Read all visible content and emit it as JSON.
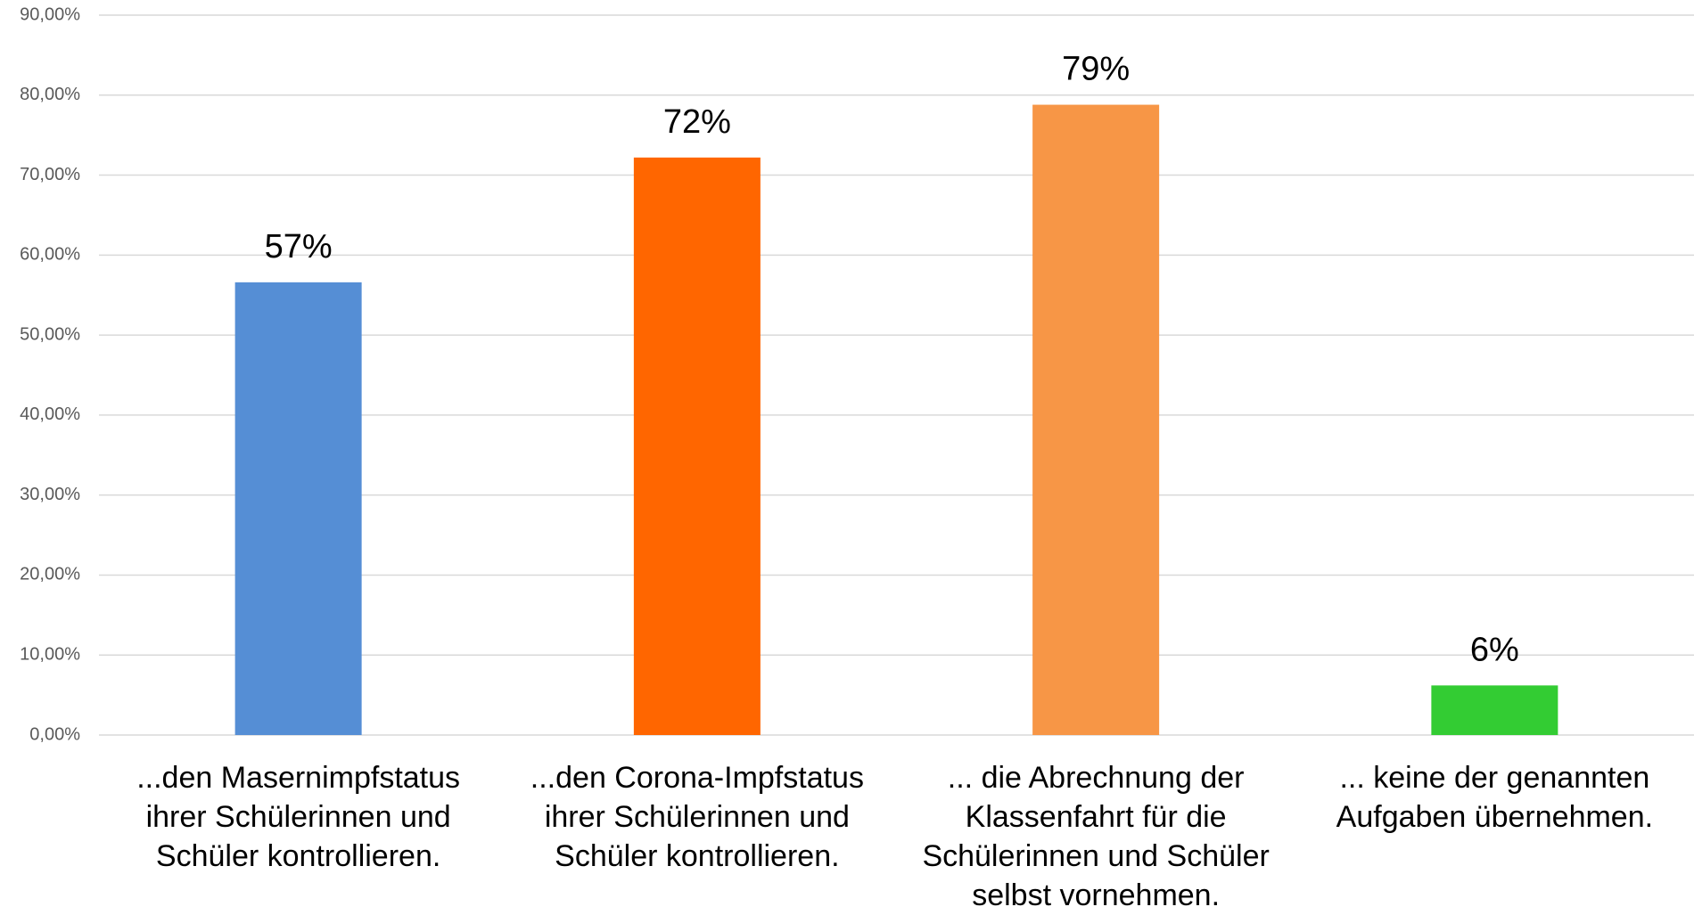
{
  "chart_data": {
    "type": "bar",
    "categories": [
      "...den Masernimpfstatus ihrer Schülerinnen und Schüler kontrollieren.",
      "...den Corona-Impfstatus ihrer Schülerinnen und Schüler kontrollieren.",
      "... die Abrechnung der Klassenfahrt für die Schülerinnen und Schüler selbst vornehmen.",
      "... keine der genannten Aufgaben übernehmen."
    ],
    "values": [
      56.6,
      72.2,
      78.8,
      6.2
    ],
    "value_labels": [
      "57%",
      "72%",
      "79%",
      "6%"
    ],
    "colors": [
      "#558ed5",
      "#ff6600",
      "#f79646",
      "#33cc33"
    ],
    "ylim": [
      0,
      90
    ],
    "yticks": [
      {
        "value": 0,
        "label": "0,00%"
      },
      {
        "value": 10,
        "label": "10,00%"
      },
      {
        "value": 20,
        "label": "20,00%"
      },
      {
        "value": 30,
        "label": "30,00%"
      },
      {
        "value": 40,
        "label": "40,00%"
      },
      {
        "value": 50,
        "label": "50,00%"
      },
      {
        "value": 60,
        "label": "60,00%"
      },
      {
        "value": 70,
        "label": "70,00%"
      },
      {
        "value": 80,
        "label": "80,00%"
      },
      {
        "value": 90,
        "label": "90,00%"
      }
    ],
    "grid": true
  }
}
